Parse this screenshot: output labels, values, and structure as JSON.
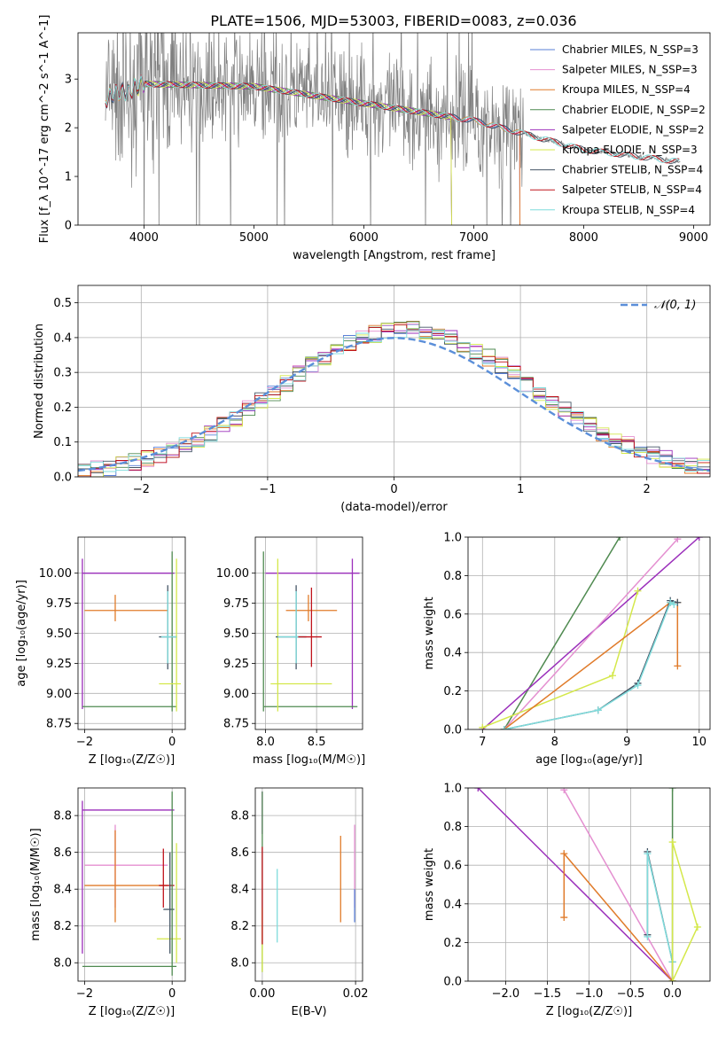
{
  "figure": {
    "title": "PLATE=1506, MJD=53003, FIBERID=0083, z=0.036"
  },
  "chart_data": [
    {
      "id": "spectrum",
      "type": "line",
      "xlabel": "wavelength [Angstrom, rest frame]",
      "ylabel": "Flux [f_λ 10^-17 erg cm^-2 s^-1 A^-1]",
      "xlim": [
        3400,
        9150
      ],
      "ylim": [
        0,
        3.95
      ],
      "xticks": [
        4000,
        5000,
        6000,
        7000,
        8000,
        9000
      ],
      "yticks": [
        0,
        1,
        2,
        3
      ],
      "grid": false,
      "legend": "upper-right",
      "data_series": {
        "name": "data",
        "color": "#808080",
        "x_range": [
          3650,
          8880
        ],
        "approx_level": [
          [
            3650,
            2.6
          ],
          [
            4000,
            2.9
          ],
          [
            5000,
            2.85
          ],
          [
            6000,
            2.5
          ],
          [
            7000,
            2.15
          ],
          [
            8000,
            1.55
          ],
          [
            8880,
            1.3
          ]
        ]
      },
      "model_series": [
        {
          "name": "Chabrier MILES, N_SSP=3",
          "color": "#5a7fd6",
          "x_range": [
            3650,
            7420
          ]
        },
        {
          "name": "Salpeter MILES, N_SSP=3",
          "color": "#e48fd0",
          "x_range": [
            3650,
            7420
          ]
        },
        {
          "name": "Kroupa MILES, N_SSP=4",
          "color": "#e07b2a",
          "x_range": [
            3650,
            7420
          ]
        },
        {
          "name": "Chabrier ELODIE, N_SSP=2",
          "color": "#4f8a50",
          "x_range": [
            3900,
            6800
          ]
        },
        {
          "name": "Salpeter ELODIE, N_SSP=2",
          "color": "#9b2fbb",
          "x_range": [
            3900,
            6800
          ]
        },
        {
          "name": "Kroupa ELODIE, N_SSP=3",
          "color": "#d4e84a",
          "x_range": [
            3900,
            6800
          ]
        },
        {
          "name": "Chabrier STELIB, N_SSP=4",
          "color": "#445566",
          "x_range": [
            3650,
            8880
          ]
        },
        {
          "name": "Salpeter STELIB, N_SSP=4",
          "color": "#c0141c",
          "x_range": [
            3650,
            8880
          ]
        },
        {
          "name": "Kroupa STELIB, N_SSP=4",
          "color": "#7fdcdc",
          "x_range": [
            3650,
            8880
          ]
        }
      ]
    },
    {
      "id": "residuals",
      "type": "line",
      "xlabel": "(data-model)/error",
      "ylabel": "Normed distribution",
      "xlim": [
        -2.5,
        2.5
      ],
      "ylim": [
        0,
        0.55
      ],
      "xticks": [
        -2,
        -1,
        0,
        1,
        2
      ],
      "yticks": [
        0.0,
        0.1,
        0.2,
        0.3,
        0.4,
        0.5
      ],
      "grid": true,
      "legend": "upper-right",
      "reference": {
        "name": "𝒩(0, 1)",
        "color": "#5b8fd9",
        "mean": 0,
        "sigma": 1
      }
    },
    {
      "id": "age_vs_Z",
      "type": "scatter",
      "xlabel": "Z [log₁₀(Z/Z☉)]",
      "ylabel": "age  [log₁₀(age/yr)]",
      "xlim": [
        -2.15,
        0.3
      ],
      "ylim": [
        8.7,
        10.3
      ],
      "xticks": [
        -2,
        0
      ],
      "yticks": [
        8.75,
        9.0,
        9.25,
        9.5,
        9.75,
        10.0
      ],
      "grid": true,
      "points": [
        {
          "color": "#9b2fbb",
          "x": -2.05,
          "y": 10.0,
          "xlo": -2.05,
          "xhi": 0.05,
          "ylo": 8.87,
          "yhi": 10.12
        },
        {
          "color": "#e07b2a",
          "x": -1.3,
          "y": 9.69,
          "xlo": -2.0,
          "xhi": -0.1,
          "ylo": 9.6,
          "yhi": 9.82
        },
        {
          "color": "#4f8a50",
          "x": 0.0,
          "y": 8.89,
          "xlo": -2.05,
          "xhi": 0.1,
          "ylo": 8.85,
          "yhi": 10.18
        },
        {
          "color": "#d4e84a",
          "x": 0.1,
          "y": 9.08,
          "xlo": -0.3,
          "xhi": 0.2,
          "ylo": 8.85,
          "yhi": 10.12
        },
        {
          "color": "#445566",
          "x": -0.1,
          "y": 9.47,
          "xlo": -0.3,
          "xhi": 0.1,
          "ylo": 9.2,
          "yhi": 9.9
        },
        {
          "color": "#7fdcdc",
          "x": -0.1,
          "y": 9.47,
          "xlo": -0.25,
          "xhi": 0.1,
          "ylo": 9.25,
          "yhi": 9.85
        }
      ]
    },
    {
      "id": "age_vs_mass",
      "type": "scatter",
      "xlabel": "mass [log₁₀(M/M☉)]",
      "ylabel": "",
      "xlim": [
        7.9,
        8.95
      ],
      "ylim": [
        8.7,
        10.3
      ],
      "xticks": [
        8.0,
        8.5
      ],
      "yticks": [
        8.75,
        9.0,
        9.25,
        9.5,
        9.75,
        10.0
      ],
      "grid": true,
      "points": [
        {
          "color": "#9b2fbb",
          "x": 8.85,
          "y": 10.0,
          "xlo": 8.0,
          "xhi": 8.92,
          "ylo": 8.87,
          "yhi": 10.12
        },
        {
          "color": "#4f8a50",
          "x": 7.98,
          "y": 8.89,
          "xlo": 7.98,
          "xhi": 8.9,
          "ylo": 8.85,
          "yhi": 10.18
        },
        {
          "color": "#d4e84a",
          "x": 8.12,
          "y": 9.08,
          "xlo": 8.05,
          "xhi": 8.65,
          "ylo": 8.85,
          "yhi": 10.12
        },
        {
          "color": "#e07b2a",
          "x": 8.42,
          "y": 9.69,
          "xlo": 8.2,
          "xhi": 8.7,
          "ylo": 9.6,
          "yhi": 9.82
        },
        {
          "color": "#445566",
          "x": 8.3,
          "y": 9.47,
          "xlo": 8.1,
          "xhi": 8.4,
          "ylo": 9.2,
          "yhi": 9.9
        },
        {
          "color": "#7fdcdc",
          "x": 8.3,
          "y": 9.47,
          "xlo": 8.12,
          "xhi": 8.38,
          "ylo": 9.25,
          "yhi": 9.85
        },
        {
          "color": "#c0141c",
          "x": 8.45,
          "y": 9.47,
          "xlo": 8.32,
          "xhi": 8.55,
          "ylo": 9.22,
          "yhi": 9.88
        }
      ]
    },
    {
      "id": "mass_weight_vs_age",
      "type": "line",
      "xlabel": "age  [log₁₀(age/yr)]",
      "ylabel": "mass weight",
      "xlim": [
        6.8,
        10.15
      ],
      "ylim": [
        0,
        1.0
      ],
      "xticks": [
        7,
        8,
        9,
        10
      ],
      "yticks": [
        0.0,
        0.2,
        0.4,
        0.6,
        0.8,
        1.0
      ],
      "grid": true,
      "series": [
        {
          "color": "#4f8a50",
          "x": [
            7.3,
            8.9
          ],
          "y": [
            0.0,
            1.0
          ]
        },
        {
          "color": "#9b2fbb",
          "x": [
            7.0,
            10.0
          ],
          "y": [
            0.0,
            1.0
          ]
        },
        {
          "color": "#e48fd0",
          "x": [
            7.3,
            9.7
          ],
          "y": [
            0.0,
            0.99
          ]
        },
        {
          "color": "#d4e84a",
          "x": [
            7.0,
            8.8,
            9.15
          ],
          "y": [
            0.01,
            0.28,
            0.72
          ]
        },
        {
          "color": "#e07b2a",
          "x": [
            7.3,
            9.6,
            9.7,
            9.7
          ],
          "y": [
            0.0,
            0.66,
            0.66,
            0.33
          ]
        },
        {
          "color": "#445566",
          "x": [
            7.3,
            8.6,
            9.15,
            9.6,
            9.7
          ],
          "y": [
            0.0,
            0.1,
            0.24,
            0.67,
            0.66
          ]
        },
        {
          "color": "#7fdcdc",
          "x": [
            7.3,
            8.6,
            9.15,
            9.6,
            9.65
          ],
          "y": [
            0.0,
            0.1,
            0.23,
            0.66,
            0.65
          ]
        }
      ]
    },
    {
      "id": "mass_vs_Z",
      "type": "scatter",
      "xlabel": "Z [log₁₀(Z/Z☉)]",
      "ylabel": "mass [log₁₀(M/M☉)]",
      "xlim": [
        -2.15,
        0.3
      ],
      "ylim": [
        7.9,
        8.95
      ],
      "xticks": [
        -2,
        0
      ],
      "yticks": [
        8.0,
        8.2,
        8.4,
        8.6,
        8.8
      ],
      "grid": true,
      "points": [
        {
          "color": "#9b2fbb",
          "x": -2.05,
          "y": 8.83,
          "xlo": -2.05,
          "xhi": 0.05,
          "ylo": 8.05,
          "yhi": 8.88
        },
        {
          "color": "#e48fd0",
          "x": -1.3,
          "y": 8.53,
          "xlo": -2.0,
          "xhi": -0.1,
          "ylo": 8.3,
          "yhi": 8.75
        },
        {
          "color": "#e07b2a",
          "x": -1.3,
          "y": 8.42,
          "xlo": -2.0,
          "xhi": -0.1,
          "ylo": 8.22,
          "yhi": 8.72
        },
        {
          "color": "#c0141c",
          "x": -0.2,
          "y": 8.42,
          "xlo": -0.3,
          "xhi": 0.05,
          "ylo": 8.3,
          "yhi": 8.62
        },
        {
          "color": "#d4e84a",
          "x": 0.1,
          "y": 8.13,
          "xlo": -0.35,
          "xhi": 0.2,
          "ylo": 8.0,
          "yhi": 8.65
        },
        {
          "color": "#445566",
          "x": -0.05,
          "y": 8.29,
          "xlo": -0.2,
          "xhi": 0.05,
          "ylo": 8.05,
          "yhi": 8.6
        },
        {
          "color": "#4f8a50",
          "x": 0.0,
          "y": 7.98,
          "xlo": -2.05,
          "xhi": 0.1,
          "ylo": 7.93,
          "yhi": 8.93
        }
      ]
    },
    {
      "id": "mass_vs_ebv",
      "type": "scatter",
      "xlabel": "E(B-V)",
      "ylabel": "",
      "xlim": [
        -0.0015,
        0.0215
      ],
      "ylim": [
        7.9,
        8.95
      ],
      "xticks": [
        0.0,
        0.02
      ],
      "yticks": [
        8.0,
        8.2,
        8.4,
        8.6,
        8.8
      ],
      "grid": true,
      "points": [
        {
          "color": "#9b2fbb",
          "x": 0.0,
          "y": 8.83,
          "ylo": 8.7,
          "yhi": 8.93
        },
        {
          "color": "#4f8a50",
          "x": 0.0,
          "y": 8.0,
          "ylo": 7.95,
          "yhi": 8.93
        },
        {
          "color": "#d4e84a",
          "x": 0.0,
          "y": 8.0,
          "ylo": 7.95,
          "yhi": 8.3
        },
        {
          "color": "#c0141c",
          "x": 0.0,
          "y": 8.42,
          "ylo": 8.1,
          "yhi": 8.63
        },
        {
          "color": "#7fdcdc",
          "x": 0.0032,
          "y": 8.3,
          "ylo": 8.11,
          "yhi": 8.51
        },
        {
          "color": "#e07b2a",
          "x": 0.0168,
          "y": 8.42,
          "ylo": 8.22,
          "yhi": 8.69
        },
        {
          "color": "#e48fd0",
          "x": 0.0198,
          "y": 8.53,
          "ylo": 8.3,
          "yhi": 8.75
        },
        {
          "color": "#5a7fd6",
          "x": 0.0198,
          "y": 8.3,
          "ylo": 8.22,
          "yhi": 8.4
        }
      ]
    },
    {
      "id": "mass_weight_vs_Z",
      "type": "line",
      "xlabel": "Z [log₁₀(Z/Z☉)]",
      "ylabel": "mass weight",
      "xlim": [
        -2.45,
        0.45
      ],
      "ylim": [
        0,
        1.0
      ],
      "xticks": [
        -2.0,
        -1.5,
        -1.0,
        -0.5,
        0.0
      ],
      "yticks": [
        0.0,
        0.2,
        0.4,
        0.6,
        0.8,
        1.0
      ],
      "grid": true,
      "series": [
        {
          "color": "#9b2fbb",
          "x": [
            -2.33,
            0.0
          ],
          "y": [
            1.0,
            0.0
          ]
        },
        {
          "color": "#e48fd0",
          "x": [
            -1.3,
            0.0
          ],
          "y": [
            0.99,
            0.0
          ]
        },
        {
          "color": "#e07b2a",
          "x": [
            -1.3,
            -1.3,
            0.0
          ],
          "y": [
            0.33,
            0.66,
            0.0
          ]
        },
        {
          "color": "#445566",
          "x": [
            -0.3,
            -0.3,
            0.0,
            0.0
          ],
          "y": [
            0.24,
            0.67,
            0.1,
            0.0
          ]
        },
        {
          "color": "#7fdcdc",
          "x": [
            -0.3,
            -0.3,
            0.0
          ],
          "y": [
            0.23,
            0.66,
            0.1
          ]
        },
        {
          "color": "#4f8a50",
          "x": [
            0.0,
            0.0
          ],
          "y": [
            0.0,
            1.0
          ]
        },
        {
          "color": "#d4e84a",
          "x": [
            0.0,
            0.0,
            0.3,
            0.0
          ],
          "y": [
            0.0,
            0.72,
            0.28,
            0.0
          ]
        }
      ]
    }
  ]
}
